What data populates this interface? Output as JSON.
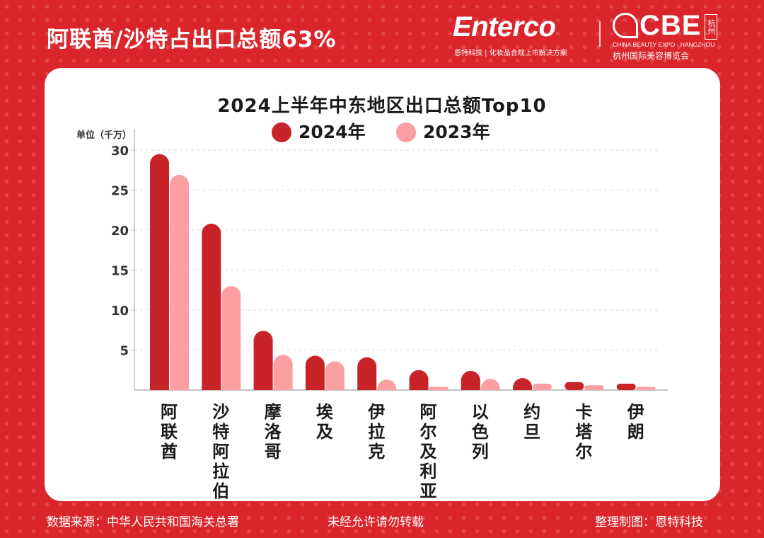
{
  "header": {
    "headline": "阿联酋/沙特占出口总额63%",
    "enterco_logo": "Enterco",
    "enterco_tagline": "恩特科技 | 化妆品合规上市解决方案",
    "cbe_logo": "CBE",
    "cbe_tag": "杭州",
    "cbe_en": "CHINA BEAUTY EXPO · HANGZHOU",
    "cbe_cn": "杭州国际美容博览会"
  },
  "chart_data": {
    "type": "bar",
    "title": "2024上半年中东地区出口总额Top10",
    "ylabel": "单位（千万）",
    "ylim": [
      0,
      30
    ],
    "yticks": [
      5,
      10,
      15,
      20,
      25,
      30
    ],
    "grid": true,
    "legend_position": "top",
    "categories": [
      "阿联酋",
      "沙特阿拉伯",
      "摩洛哥",
      "埃及",
      "伊拉克",
      "阿尔及利亚",
      "以色列",
      "约旦",
      "卡塔尔",
      "伊朗"
    ],
    "series": [
      {
        "name": "2024年",
        "color": "#c9232a",
        "values": [
          29.5,
          20.8,
          7.4,
          4.3,
          4.1,
          2.5,
          2.4,
          1.5,
          1.0,
          0.8
        ]
      },
      {
        "name": "2023年",
        "color": "#fc9fa3",
        "values": [
          26.9,
          13.0,
          4.4,
          3.6,
          1.3,
          0.4,
          1.4,
          0.8,
          0.6,
          0.4
        ]
      }
    ]
  },
  "footer": {
    "source": "数据来源：中华人民共和国海关总署",
    "notice": "未经允许请勿转载",
    "credit": "整理制图：恩特科技"
  },
  "colors": {
    "background": "#d9252b",
    "card": "#ffffff",
    "series_2024": "#c9232a",
    "series_2023": "#fc9fa3"
  }
}
